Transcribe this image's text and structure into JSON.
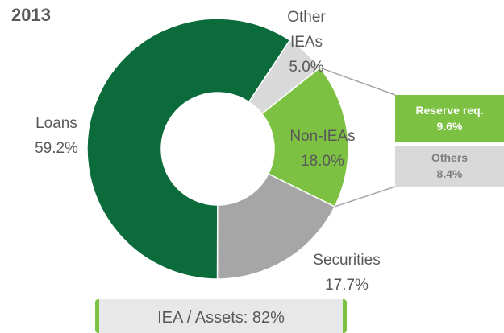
{
  "chart_data": {
    "type": "donut",
    "title": "2013",
    "categories": [
      "Other IEAs",
      "Non-IEAs",
      "Securities",
      "Loans"
    ],
    "values": [
      5.0,
      18.0,
      17.7,
      59.2
    ],
    "value_labels": [
      "5.0%",
      "18.0%",
      "17.7%",
      "59.2%"
    ],
    "colors": [
      "#d9d9d9",
      "#7cc142",
      "#a6a6a6",
      "#0b6b3a"
    ],
    "breakdown": {
      "categories": [
        "Reserve req.",
        "Others"
      ],
      "values": [
        9.6,
        8.4
      ],
      "value_labels": [
        "9.6%",
        "8.4%"
      ],
      "colors": [
        "#7cc142",
        "#d9d9d9"
      ]
    },
    "footnote": "IEA / Assets: 82%"
  }
}
